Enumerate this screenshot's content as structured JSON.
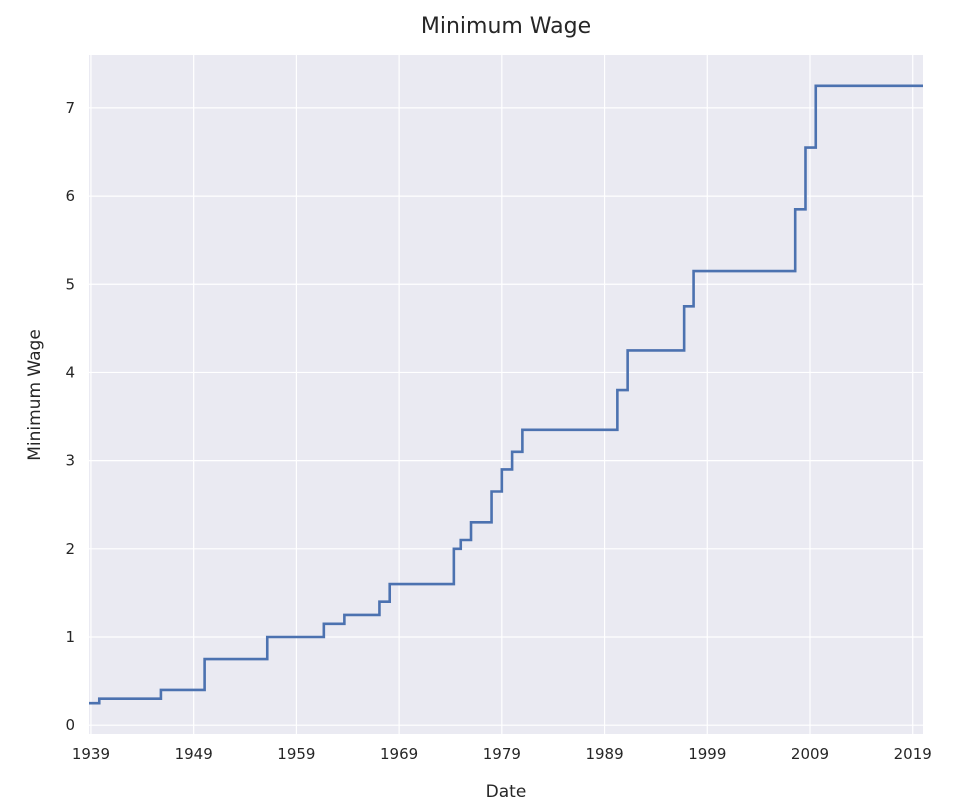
{
  "chart_data": {
    "type": "line",
    "title": "Minimum Wage",
    "xlabel": "Date",
    "ylabel": "Minimum Wage",
    "xlim": [
      "1938-10-24",
      "2020-01-01"
    ],
    "ylim": [
      -0.1,
      7.6
    ],
    "x_ticks": [
      "1939",
      "1949",
      "1959",
      "1969",
      "1979",
      "1989",
      "1999",
      "2009",
      "2019"
    ],
    "y_ticks": [
      "0",
      "1",
      "2",
      "3",
      "4",
      "5",
      "6",
      "7"
    ],
    "grid": true,
    "legend": "none",
    "step": "post",
    "series": [
      {
        "color": "#4c72b0",
        "x": [
          "1938-10-24",
          "1939-10-24",
          "1945-10-24",
          "1950-01-25",
          "1956-03-01",
          "1961-09-03",
          "1963-09-03",
          "1967-02-01",
          "1968-02-01",
          "1974-05-01",
          "1975-01-01",
          "1976-01-01",
          "1978-01-01",
          "1979-01-01",
          "1980-01-01",
          "1981-01-01",
          "1990-04-01",
          "1991-04-01",
          "1996-10-01",
          "1997-09-01",
          "2007-07-24",
          "2008-07-24",
          "2009-07-24",
          "2020-01-01"
        ],
        "values": [
          0.25,
          0.3,
          0.4,
          0.75,
          1.0,
          1.15,
          1.25,
          1.4,
          1.6,
          2.0,
          2.1,
          2.3,
          2.65,
          2.9,
          3.1,
          3.35,
          3.8,
          4.25,
          4.75,
          5.15,
          5.85,
          6.55,
          7.25,
          7.25
        ]
      }
    ]
  }
}
